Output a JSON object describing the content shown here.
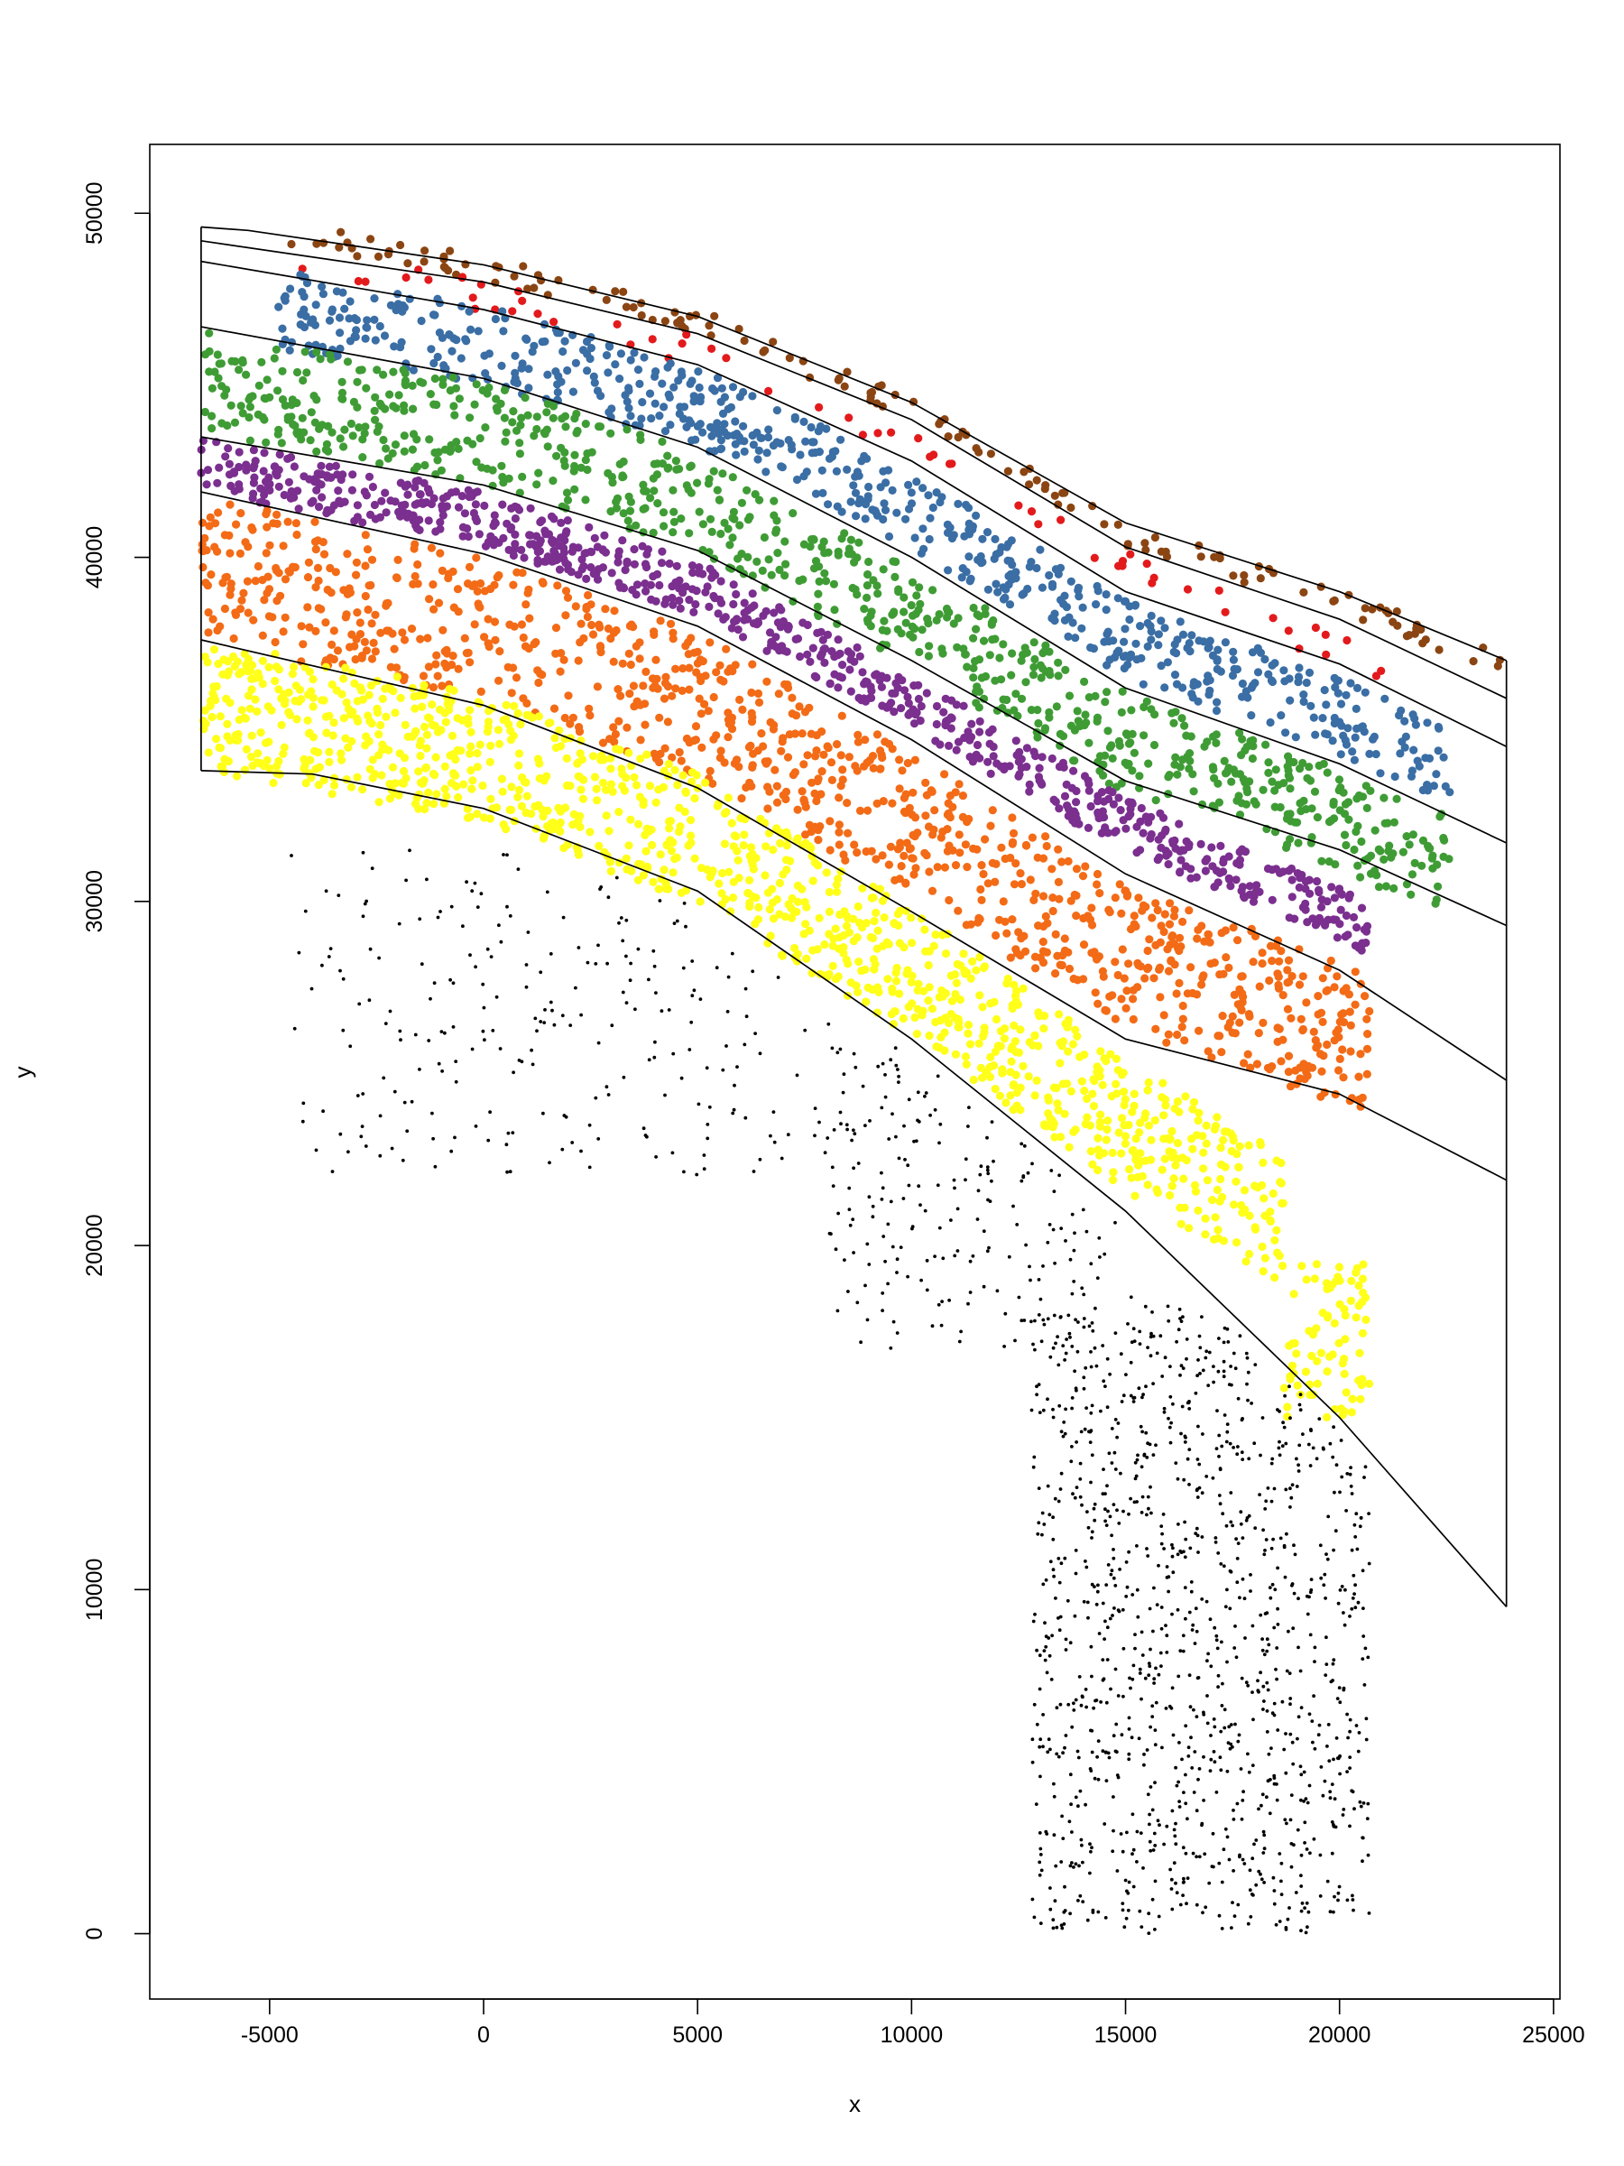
{
  "chart_data": {
    "type": "scatter",
    "title": "",
    "xlabel": "x",
    "ylabel": "y",
    "xlim": [
      -7800,
      25150
    ],
    "ylim": [
      -1900,
      52000
    ],
    "x_ticks": [
      -5000,
      0,
      5000,
      10000,
      15000,
      20000,
      25000
    ],
    "y_ticks": [
      0,
      10000,
      20000,
      30000,
      40000,
      50000
    ],
    "x_tick_labels": [
      "-5000",
      "0",
      "5000",
      "10000",
      "15000",
      "20000",
      "25000"
    ],
    "y_tick_labels": [
      "0",
      "10000",
      "20000",
      "30000",
      "40000",
      "50000"
    ],
    "grid": false,
    "legend": "none",
    "boundary_lines": [
      {
        "x": [
          -6600,
          -5500,
          0,
          5000,
          10000,
          15000,
          20000,
          23900
        ],
        "y": [
          49600,
          49500,
          48500,
          47000,
          44500,
          41000,
          39000,
          37000
        ]
      },
      {
        "x": [
          -6600,
          0,
          5000,
          10000,
          15000,
          20000,
          23900
        ],
        "y": [
          49200,
          48000,
          46500,
          44000,
          40300,
          38200,
          35900
        ]
      },
      {
        "x": [
          -6600,
          0,
          5000,
          10000,
          15000,
          20000,
          23900
        ],
        "y": [
          48600,
          47200,
          45600,
          42800,
          39000,
          36900,
          34500
        ]
      },
      {
        "x": [
          -6600,
          0,
          5000,
          10000,
          15000,
          20000,
          23900
        ],
        "y": [
          46700,
          45200,
          43200,
          40000,
          36200,
          34000,
          31700
        ]
      },
      {
        "x": [
          -6600,
          0,
          5000,
          10000,
          15000,
          20000,
          23900
        ],
        "y": [
          43500,
          42100,
          40200,
          37000,
          33500,
          31500,
          29300
        ]
      },
      {
        "x": [
          -6600,
          0,
          5000,
          10000,
          15000,
          20000,
          23900
        ],
        "y": [
          41900,
          40100,
          38000,
          34700,
          30800,
          28000,
          24800
        ]
      },
      {
        "x": [
          -6600,
          0,
          5000,
          10000,
          15000,
          20000,
          23900
        ],
        "y": [
          37600,
          35700,
          33300,
          29700,
          26000,
          24400,
          21900
        ]
      },
      {
        "x": [
          -6600,
          -4000,
          0,
          5000,
          10000,
          15000,
          20000,
          23900
        ],
        "y": [
          33800,
          33700,
          32700,
          30300,
          26000,
          21000,
          15000,
          9500
        ]
      },
      {
        "x": [
          23900,
          23900,
          23900
        ],
        "y": [
          37000,
          21900,
          9500
        ]
      },
      {
        "x": [
          -6600,
          -6600
        ],
        "y": [
          49600,
          33800
        ]
      }
    ],
    "series": [
      {
        "color": "#8B4513",
        "point_size": "large",
        "anchors": [
          [
            -4500,
            49400
          ],
          [
            0,
            48400
          ],
          [
            5000,
            46900
          ],
          [
            10000,
            44300
          ],
          [
            15000,
            40700
          ],
          [
            20000,
            38700
          ],
          [
            23900,
            36900
          ]
        ],
        "half_width": 350,
        "count": 150,
        "x_range": [
          -4500,
          23900
        ],
        "x_cut": null,
        "y_min": null
      },
      {
        "color": "#E31A1C",
        "point_size": "large",
        "anchors": [
          [
            -4500,
            48600
          ],
          [
            0,
            47600
          ],
          [
            5000,
            46000
          ],
          [
            10000,
            43400
          ],
          [
            15000,
            39700
          ],
          [
            20000,
            37300
          ],
          [
            23900,
            35300
          ]
        ],
        "half_width": 450,
        "count": 60,
        "x_range": [
          -4500,
          21000
        ],
        "x_cut": null,
        "y_min": null
      },
      {
        "color": "#3A6EA5",
        "point_size": "large",
        "anchors": [
          [
            -4800,
            47200
          ],
          [
            0,
            46200
          ],
          [
            5000,
            44400
          ],
          [
            10000,
            41400
          ],
          [
            15000,
            37600
          ],
          [
            20000,
            35400
          ],
          [
            23900,
            33200
          ]
        ],
        "half_width": 1150,
        "count": 650,
        "x_range": [
          -4800,
          22600
        ],
        "x_cut": null,
        "y_min": null
      },
      {
        "color": "#3F9C35",
        "point_size": "large",
        "anchors": [
          [
            -6600,
            45100
          ],
          [
            0,
            43600
          ],
          [
            5000,
            41600
          ],
          [
            10000,
            38300
          ],
          [
            15000,
            34600
          ],
          [
            20000,
            32400
          ],
          [
            23900,
            30200
          ]
        ],
        "half_width": 1500,
        "count": 800,
        "x_range": [
          -6600,
          22600
        ],
        "x_cut": null,
        "y_min": null
      },
      {
        "color": "#7B2F8F",
        "point_size": "large",
        "anchors": [
          [
            -6600,
            42700
          ],
          [
            0,
            41100
          ],
          [
            5000,
            39100
          ],
          [
            10000,
            35800
          ],
          [
            15000,
            32200
          ],
          [
            20000,
            29700
          ],
          [
            23900,
            27000
          ]
        ],
        "half_width": 780,
        "count": 750,
        "x_range": [
          -6600,
          20700
        ],
        "x_cut": null,
        "y_min": null
      },
      {
        "color": "#F36B16",
        "point_size": "large",
        "anchors": [
          [
            -6600,
            39700
          ],
          [
            0,
            37900
          ],
          [
            5000,
            35700
          ],
          [
            10000,
            32200
          ],
          [
            15000,
            28400
          ],
          [
            20000,
            26200
          ],
          [
            23900,
            23400
          ]
        ],
        "half_width": 2100,
        "count": 1000,
        "x_range": [
          -6600,
          20700
        ],
        "x_cut": null,
        "y_min": null
      },
      {
        "color": "#FFFF1A",
        "point_size": "large",
        "anchors": [
          [
            -6600,
            35700
          ],
          [
            0,
            34200
          ],
          [
            5000,
            31800
          ],
          [
            10000,
            27900
          ],
          [
            15000,
            23500
          ],
          [
            20000,
            19700
          ],
          [
            23900,
            15700
          ]
        ],
        "half_width": 1900,
        "count": 1200,
        "x_range": [
          -6600,
          20700
        ],
        "x_cut": 18700,
        "y_min": 15000
      },
      {
        "color": "#000000",
        "point_size": "small",
        "anchors": [],
        "half_width": 0,
        "count": 1600,
        "x_range": [
          -6600,
          20700
        ],
        "x_cut": null,
        "y_min": 0
      }
    ]
  }
}
